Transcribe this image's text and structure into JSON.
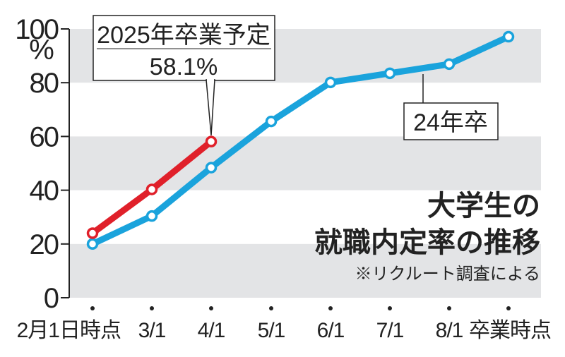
{
  "chart_data": {
    "type": "line",
    "title": "大学生の就職内定率の推移",
    "subtitle": "※リクルート調査による",
    "xlabel": "",
    "ylabel": "%",
    "ylim": [
      0,
      100
    ],
    "yticks": [
      "0",
      "20",
      "40",
      "60",
      "80",
      "100"
    ],
    "y_unit_label": "%",
    "categories": [
      "2月1日時点",
      "3/1",
      "4/1",
      "5/1",
      "6/1",
      "7/1",
      "8/1",
      "卒業時点"
    ],
    "series": [
      {
        "name": "2025年卒業予定",
        "color": "#e0202a",
        "values": [
          24.0,
          40.3,
          58.1,
          null,
          null,
          null,
          null,
          null
        ]
      },
      {
        "name": "24年卒",
        "color": "#1aa3dc",
        "values": [
          20.0,
          30.4,
          48.4,
          65.6,
          80.1,
          83.5,
          86.9,
          97.1
        ]
      }
    ],
    "annotations": [
      {
        "label_line1": "2025年卒業予定",
        "label_line2": "58.1%",
        "target": "4/1 red point"
      },
      {
        "label": "24年卒",
        "target": "blue line between 7/1 and 8/1"
      }
    ],
    "grid": "alternating gray bands every 20 units",
    "legend": "none (inline callouts)"
  },
  "labels": {
    "callout_red_line1": "2025年卒業予定",
    "callout_red_line2": "58.1%",
    "callout_blue": "24年卒",
    "title_line1": "大学生の",
    "title_line2": "就職内定率の推移",
    "note": "※リクルート調査による",
    "y_unit": "%"
  },
  "colors": {
    "red": "#e0202a",
    "blue": "#1aa3dc",
    "band": "#e3e4e6",
    "axis": "#222222"
  }
}
